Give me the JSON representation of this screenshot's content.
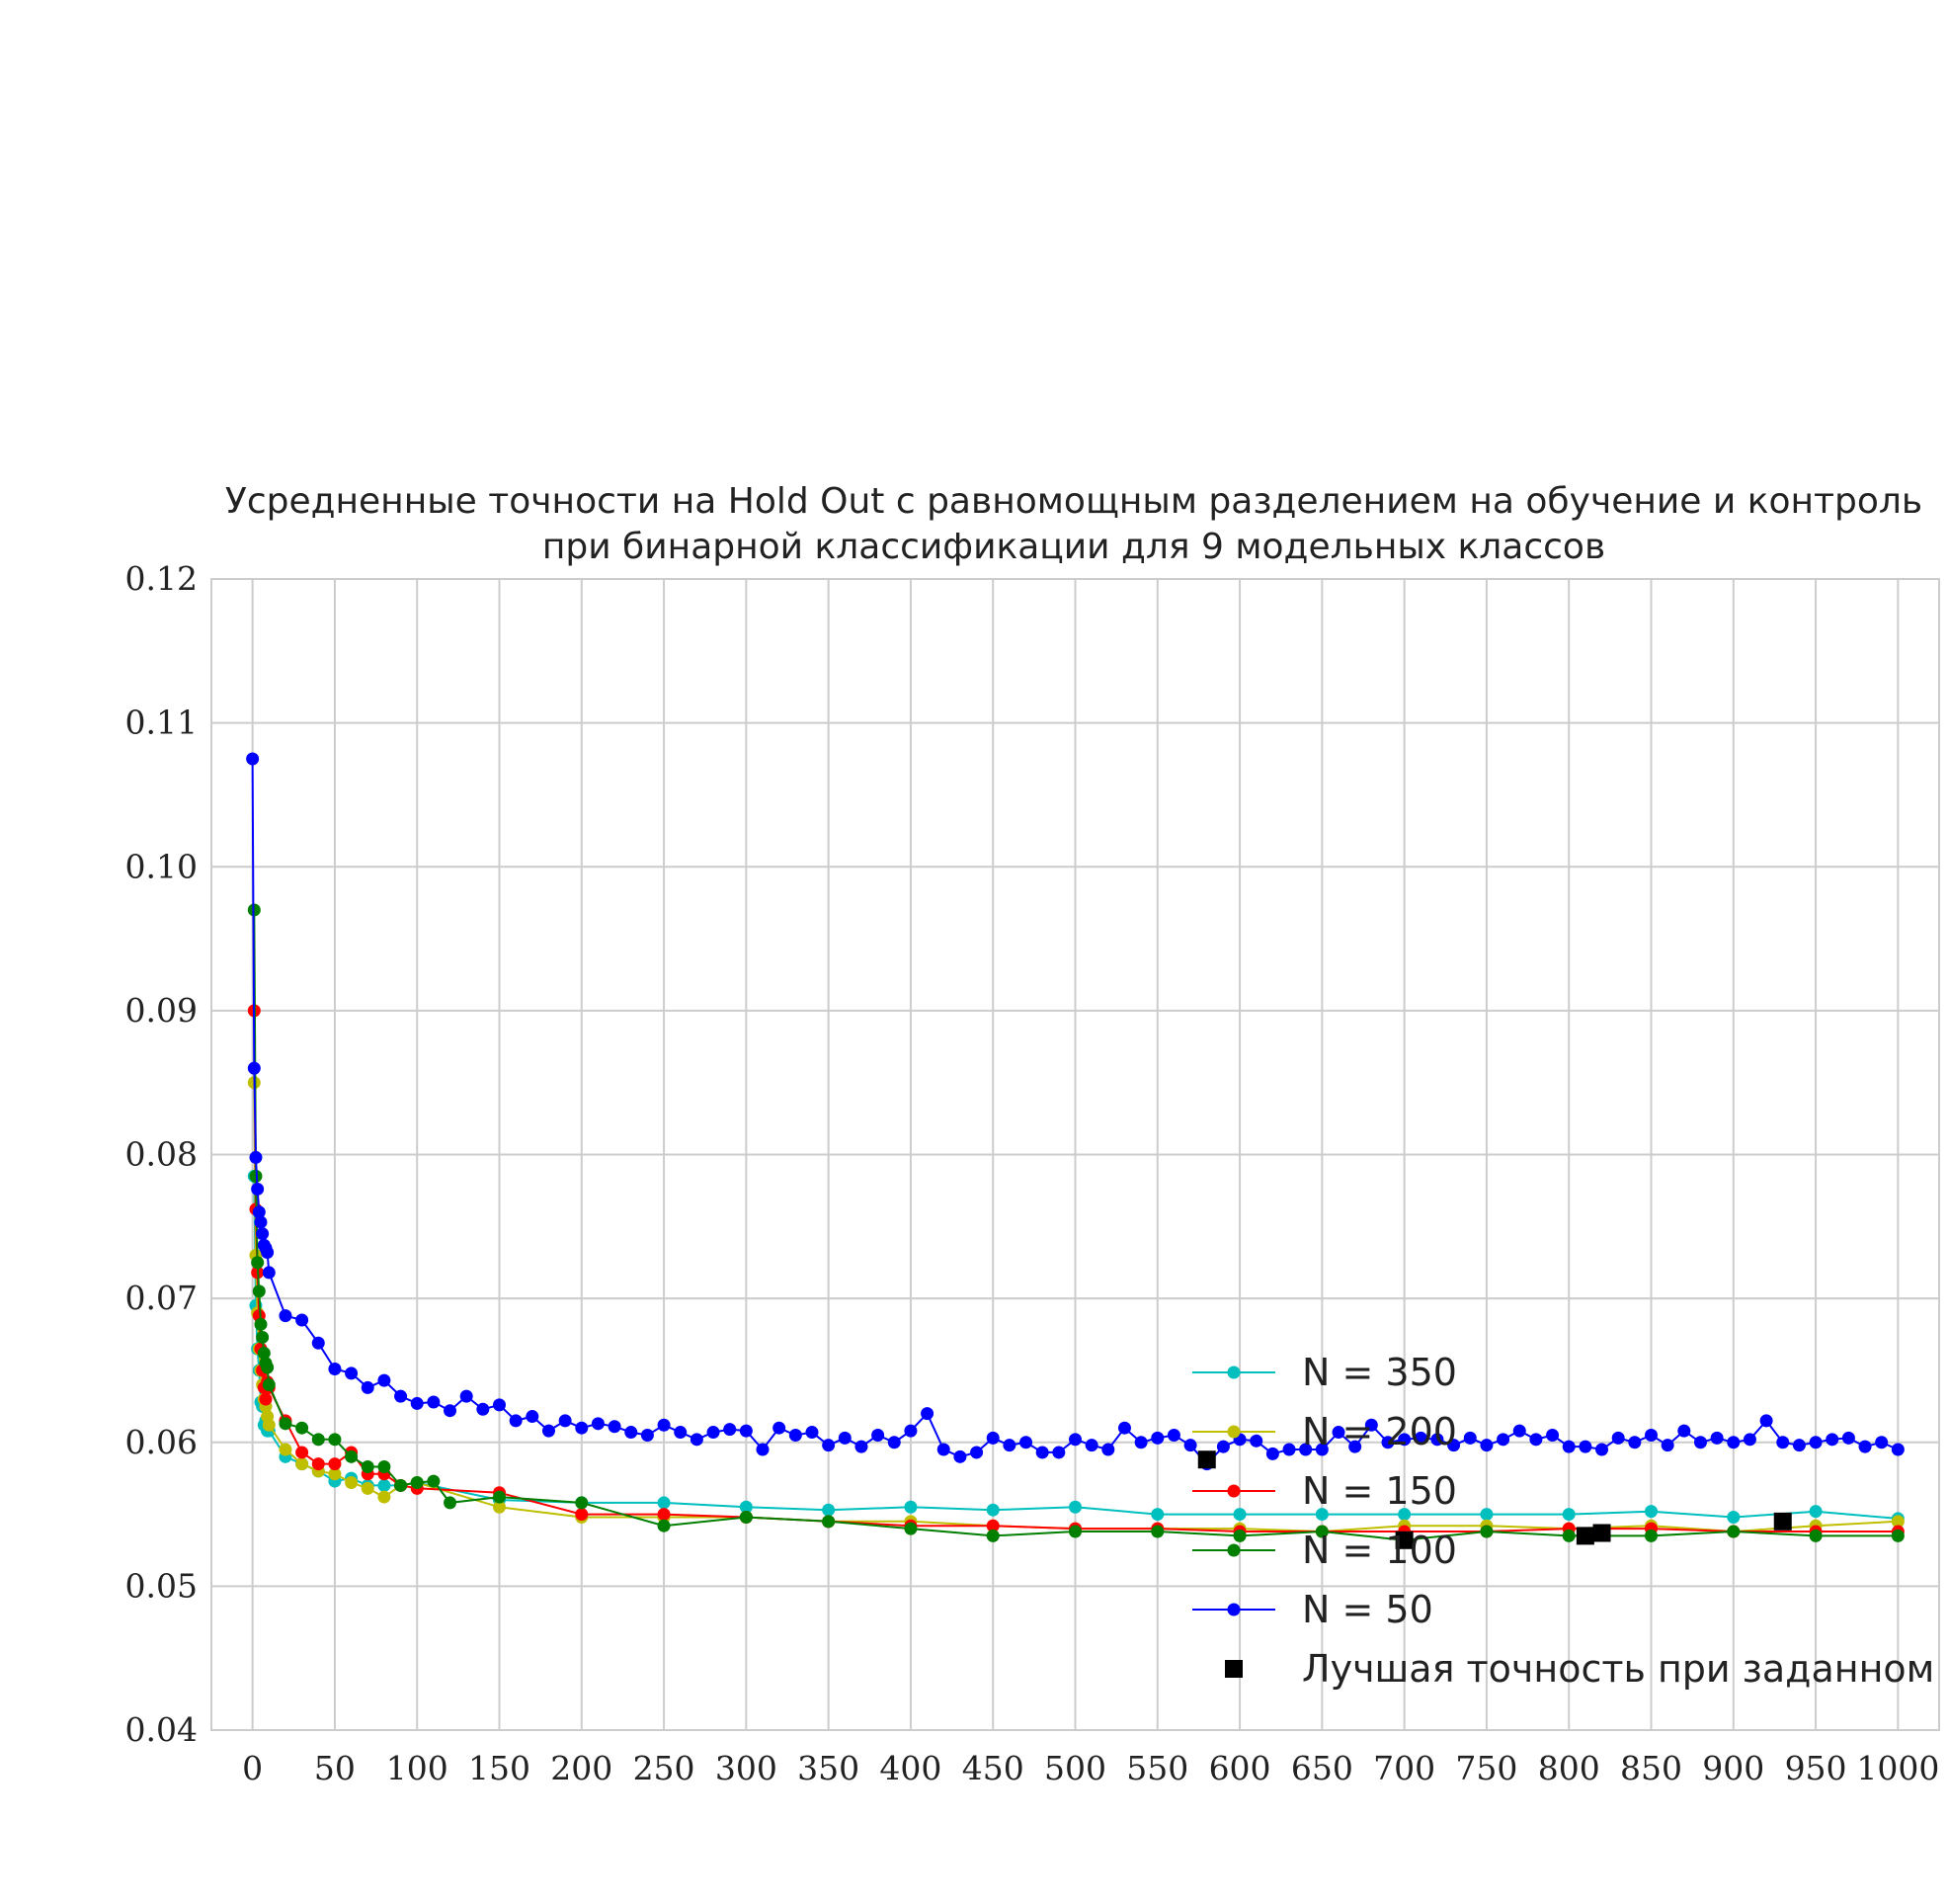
{
  "chart_data": {
    "type": "line",
    "title_lines": [
      "Усредненные точности на Hold Out с равномощным разделением на обучение и контроль",
      "при бинарной классификации для 9 модельных классов"
    ],
    "xlabel": "",
    "ylabel": "",
    "xlim": [
      -25,
      1025
    ],
    "ylim": [
      0.04,
      0.12
    ],
    "x_ticks": [
      0,
      50,
      100,
      150,
      200,
      250,
      300,
      350,
      400,
      450,
      500,
      550,
      600,
      650,
      700,
      750,
      800,
      850,
      900,
      950,
      1000
    ],
    "y_ticks": [
      0.04,
      0.05,
      0.06,
      0.07,
      0.08,
      0.09,
      0.1,
      0.11,
      0.12
    ],
    "y_tick_labels": [
      "0.04",
      "0.05",
      "0.06",
      "0.07",
      "0.08",
      "0.09",
      "0.10",
      "0.11",
      "0.12"
    ],
    "grid": true,
    "legend_position": "lower-right",
    "series": [
      {
        "name": "N = 350",
        "color": "#00bfbf",
        "x": [
          1,
          2,
          3,
          4,
          5,
          6,
          7,
          8,
          9,
          10,
          20,
          30,
          40,
          50,
          60,
          70,
          80,
          90,
          100,
          150,
          200,
          250,
          300,
          350,
          400,
          450,
          500,
          550,
          600,
          650,
          700,
          750,
          800,
          850,
          900,
          950,
          1000
        ],
        "y": [
          0.0785,
          0.0695,
          0.0665,
          0.065,
          0.0628,
          0.0625,
          0.0612,
          0.0615,
          0.0608,
          0.0608,
          0.059,
          0.0585,
          0.058,
          0.0573,
          0.0575,
          0.057,
          0.057,
          0.057,
          0.0572,
          0.056,
          0.0558,
          0.0558,
          0.0555,
          0.0553,
          0.0555,
          0.0553,
          0.0555,
          0.055,
          0.055,
          0.055,
          0.055,
          0.055,
          0.055,
          0.0552,
          0.0548,
          0.0552,
          0.0547
        ]
      },
      {
        "name": "N = 200",
        "color": "#bfbf00",
        "x": [
          1,
          2,
          3,
          4,
          5,
          6,
          7,
          8,
          9,
          10,
          20,
          30,
          40,
          50,
          60,
          70,
          80,
          90,
          100,
          150,
          200,
          250,
          300,
          350,
          400,
          450,
          500,
          550,
          600,
          650,
          700,
          750,
          800,
          850,
          900,
          950,
          1000
        ],
        "y": [
          0.085,
          0.073,
          0.069,
          0.0665,
          0.065,
          0.064,
          0.063,
          0.0625,
          0.0618,
          0.0612,
          0.0595,
          0.0585,
          0.058,
          0.0578,
          0.0572,
          0.0568,
          0.0562,
          0.057,
          0.0572,
          0.0555,
          0.0548,
          0.0548,
          0.0548,
          0.0545,
          0.0545,
          0.0542,
          0.054,
          0.054,
          0.054,
          0.0538,
          0.0542,
          0.0542,
          0.054,
          0.0542,
          0.0538,
          0.0542,
          0.0545
        ]
      },
      {
        "name": "N = 150",
        "color": "#ff0000",
        "x": [
          1,
          2,
          3,
          4,
          5,
          6,
          7,
          8,
          9,
          10,
          20,
          30,
          40,
          50,
          60,
          70,
          80,
          90,
          100,
          150,
          200,
          250,
          300,
          350,
          400,
          450,
          500,
          550,
          600,
          650,
          700,
          750,
          800,
          850,
          900,
          950,
          1000
        ],
        "y": [
          0.09,
          0.0762,
          0.0718,
          0.0688,
          0.0665,
          0.065,
          0.0638,
          0.063,
          0.0642,
          0.0638,
          0.0615,
          0.0593,
          0.0585,
          0.0585,
          0.0593,
          0.0578,
          0.0578,
          0.057,
          0.0568,
          0.0565,
          0.055,
          0.055,
          0.0548,
          0.0545,
          0.0542,
          0.0542,
          0.054,
          0.054,
          0.0538,
          0.0538,
          0.0538,
          0.0538,
          0.054,
          0.054,
          0.0538,
          0.0538,
          0.0538
        ]
      },
      {
        "name": "N = 100",
        "color": "#007f00",
        "x": [
          1,
          2,
          3,
          4,
          5,
          6,
          7,
          8,
          9,
          10,
          20,
          30,
          40,
          50,
          60,
          70,
          80,
          90,
          100,
          110,
          120,
          150,
          200,
          250,
          300,
          350,
          400,
          450,
          500,
          550,
          600,
          650,
          700,
          750,
          800,
          850,
          900,
          950,
          1000
        ],
        "y": [
          0.097,
          0.0785,
          0.0725,
          0.0705,
          0.0682,
          0.0673,
          0.0662,
          0.0655,
          0.0652,
          0.064,
          0.0613,
          0.061,
          0.0602,
          0.0602,
          0.059,
          0.0583,
          0.0583,
          0.057,
          0.0572,
          0.0573,
          0.0558,
          0.0562,
          0.0558,
          0.0542,
          0.0548,
          0.0545,
          0.054,
          0.0535,
          0.0538,
          0.0538,
          0.0535,
          0.0538,
          0.0532,
          0.0538,
          0.0535,
          0.0535,
          0.0538,
          0.0535,
          0.0535
        ]
      },
      {
        "name": "N = 50",
        "color": "#0000ff",
        "x": [
          0,
          1,
          2,
          3,
          4,
          5,
          6,
          7,
          8,
          9,
          10,
          20,
          30,
          40,
          50,
          60,
          70,
          80,
          90,
          100,
          110,
          120,
          130,
          140,
          150,
          160,
          170,
          180,
          190,
          200,
          210,
          220,
          230,
          240,
          250,
          260,
          270,
          280,
          290,
          300,
          310,
          320,
          330,
          340,
          350,
          360,
          370,
          380,
          390,
          400,
          410,
          420,
          430,
          440,
          450,
          460,
          470,
          480,
          490,
          500,
          510,
          520,
          530,
          540,
          550,
          560,
          570,
          580,
          590,
          600,
          610,
          620,
          630,
          640,
          650,
          660,
          670,
          680,
          690,
          700,
          710,
          720,
          730,
          740,
          750,
          760,
          770,
          780,
          790,
          800,
          810,
          820,
          830,
          840,
          850,
          860,
          870,
          880,
          890,
          900,
          910,
          920,
          930,
          940,
          950,
          960,
          970,
          980,
          990,
          1000
        ],
        "y": [
          0.1075,
          0.086,
          0.0798,
          0.0776,
          0.076,
          0.0753,
          0.0745,
          0.0737,
          0.0735,
          0.0732,
          0.0718,
          0.0688,
          0.0685,
          0.0669,
          0.0651,
          0.0648,
          0.0638,
          0.0643,
          0.0632,
          0.0627,
          0.0628,
          0.0622,
          0.0632,
          0.0623,
          0.0626,
          0.0615,
          0.0618,
          0.0608,
          0.0615,
          0.061,
          0.0613,
          0.0611,
          0.0607,
          0.0605,
          0.0612,
          0.0607,
          0.0602,
          0.0607,
          0.0609,
          0.0608,
          0.0595,
          0.061,
          0.0605,
          0.0607,
          0.0598,
          0.0603,
          0.0597,
          0.0605,
          0.06,
          0.0608,
          0.062,
          0.0595,
          0.059,
          0.0593,
          0.0603,
          0.0598,
          0.06,
          0.0593,
          0.0593,
          0.0602,
          0.0598,
          0.0595,
          0.061,
          0.06,
          0.0603,
          0.0605,
          0.0598,
          0.0585,
          0.0597,
          0.0602,
          0.0601,
          0.0592,
          0.0595,
          0.0595,
          0.0595,
          0.0607,
          0.0597,
          0.0612,
          0.06,
          0.0602,
          0.0603,
          0.0602,
          0.0598,
          0.0603,
          0.0598,
          0.0602,
          0.0608,
          0.0602,
          0.0605,
          0.0597,
          0.0597,
          0.0595,
          0.0603,
          0.06,
          0.0605,
          0.0598,
          0.0608,
          0.06,
          0.0603,
          0.06,
          0.0602,
          0.0615,
          0.06,
          0.0598,
          0.06,
          0.0602,
          0.0603,
          0.0597,
          0.06,
          0.0595
        ]
      }
    ],
    "best_points": {
      "name": "Лучшая точность при заданном N",
      "color": "#000000",
      "x": [
        580,
        700,
        810,
        820,
        930
      ],
      "y": [
        0.0588,
        0.0532,
        0.0535,
        0.0537,
        0.0545
      ]
    }
  }
}
